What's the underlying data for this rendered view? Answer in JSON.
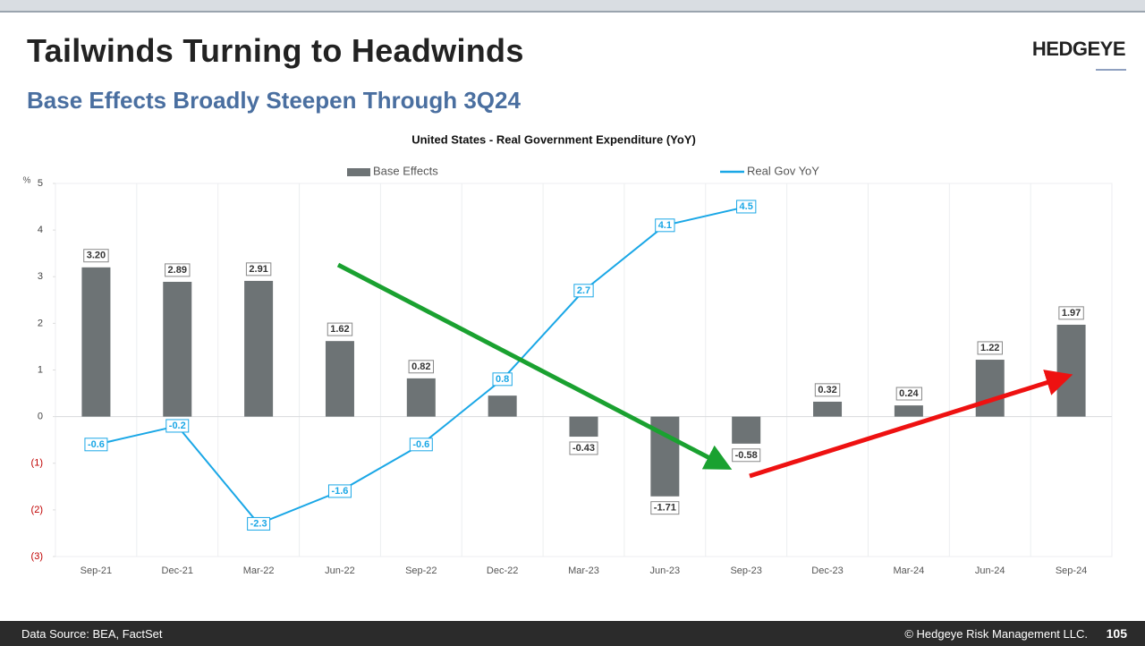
{
  "header": {
    "title": "Tailwinds Turning to Headwinds",
    "subtitle": "Base Effects Broadly Steepen Through 3Q24",
    "logo": "HEDGEYE"
  },
  "chart_data": {
    "type": "bar",
    "title": "United States - Real Government Expenditure (YoY)",
    "y_label": "%",
    "categories": [
      "Sep-21",
      "Dec-21",
      "Mar-22",
      "Jun-22",
      "Sep-22",
      "Dec-22",
      "Mar-23",
      "Jun-23",
      "Sep-23",
      "Dec-23",
      "Mar-24",
      "Jun-24",
      "Sep-24"
    ],
    "series": [
      {
        "name": "Base Effects",
        "type": "bar",
        "color": "#6d7375",
        "values": [
          3.2,
          2.89,
          2.91,
          1.62,
          0.82,
          0.45,
          -0.43,
          -1.71,
          -0.58,
          0.32,
          0.24,
          1.22,
          1.97
        ],
        "value_labels": [
          "3.20",
          "2.89",
          "2.91",
          "1.62",
          "0.82",
          null,
          "-0.43",
          "-1.71",
          "-0.58",
          "0.32",
          "0.24",
          "1.22",
          "1.97"
        ]
      },
      {
        "name": "Real Gov YoY",
        "type": "line",
        "color": "#1aa7e6",
        "values": [
          -0.6,
          -0.2,
          -2.3,
          -1.6,
          -0.6,
          0.8,
          2.7,
          4.1,
          4.5,
          null,
          null,
          null,
          null
        ]
      }
    ],
    "ylim": [
      -3,
      5
    ],
    "yticks": [
      {
        "value": -3,
        "label": "(3)"
      },
      {
        "value": -2,
        "label": "(2)"
      },
      {
        "value": -1,
        "label": "(1)"
      },
      0,
      1,
      2,
      3,
      4,
      5
    ]
  },
  "footer": {
    "source": "Data Source: BEA, FactSet",
    "copyright": "© Hedgeye Risk Management LLC.",
    "page": "105"
  }
}
